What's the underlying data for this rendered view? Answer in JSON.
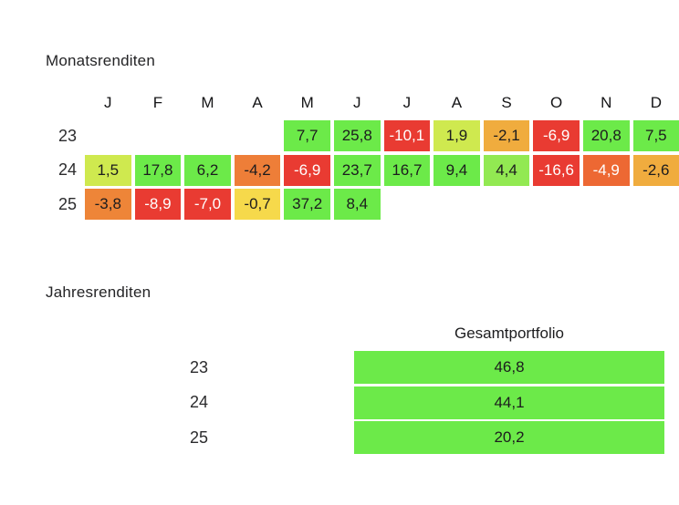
{
  "colors": {
    "page_background": "#ffffff",
    "text_dark": "#1c1c1e",
    "text_light": "#ffffff",
    "green_strong": "#6cea49",
    "green_mid": "#92e952",
    "yellow_green": "#cfe94f",
    "yellow": "#f6d94b",
    "amber": "#f0ac3e",
    "orange": "#ee8038",
    "orange_red": "#ed6833",
    "red": "#e93b32",
    "annual_bar": "#6cea49"
  },
  "monthly": {
    "title": "Monatsrenditen",
    "columns": [
      "J",
      "F",
      "M",
      "A",
      "M",
      "J",
      "J",
      "A",
      "S",
      "O",
      "N",
      "D"
    ],
    "rows": [
      {
        "year": "23",
        "cells": [
          null,
          null,
          null,
          null,
          {
            "v": "7,7",
            "bg": "#6cea49"
          },
          {
            "v": "25,8",
            "bg": "#6cea49"
          },
          {
            "v": "-10,1",
            "bg": "#e93b32",
            "light": true
          },
          {
            "v": "1,9",
            "bg": "#cfe94f"
          },
          {
            "v": "-2,1",
            "bg": "#f0ac3e"
          },
          {
            "v": "-6,9",
            "bg": "#e93b32",
            "light": true
          },
          {
            "v": "20,8",
            "bg": "#6cea49"
          },
          {
            "v": "7,5",
            "bg": "#6cea49"
          }
        ]
      },
      {
        "year": "24",
        "cells": [
          {
            "v": "1,5",
            "bg": "#cfe94f"
          },
          {
            "v": "17,8",
            "bg": "#6cea49"
          },
          {
            "v": "6,2",
            "bg": "#6cea49"
          },
          {
            "v": "-4,2",
            "bg": "#ee7e38"
          },
          {
            "v": "-6,9",
            "bg": "#e93b32",
            "light": true
          },
          {
            "v": "23,7",
            "bg": "#6cea49"
          },
          {
            "v": "16,7",
            "bg": "#6cea49"
          },
          {
            "v": "9,4",
            "bg": "#6cea49"
          },
          {
            "v": "4,4",
            "bg": "#92e952"
          },
          {
            "v": "-16,6",
            "bg": "#e93b32",
            "light": true
          },
          {
            "v": "-4,9",
            "bg": "#ed6833",
            "light": true
          },
          {
            "v": "-2,6",
            "bg": "#f0ac3e"
          }
        ]
      },
      {
        "year": "25",
        "cells": [
          {
            "v": "-3,8",
            "bg": "#ee8538"
          },
          {
            "v": "-8,9",
            "bg": "#e93b32",
            "light": true
          },
          {
            "v": "-7,0",
            "bg": "#e93b32",
            "light": true
          },
          {
            "v": "-0,7",
            "bg": "#f6d94b"
          },
          {
            "v": "37,2",
            "bg": "#6cea49"
          },
          {
            "v": "8,4",
            "bg": "#6cea49"
          },
          null,
          null,
          null,
          null,
          null,
          null
        ]
      }
    ]
  },
  "annual": {
    "title": "Jahresrenditen",
    "column_header": "Gesamtportfolio",
    "rows": [
      {
        "year": "23",
        "value": "46,8"
      },
      {
        "year": "24",
        "value": "44,1"
      },
      {
        "year": "25",
        "value": "20,2"
      }
    ]
  },
  "chart_data": [
    {
      "type": "heatmap",
      "title": "Monatsrenditen",
      "x_labels": [
        "J",
        "F",
        "M",
        "A",
        "M",
        "J",
        "J",
        "A",
        "S",
        "O",
        "N",
        "D"
      ],
      "y_labels": [
        "23",
        "24",
        "25"
      ],
      "values": [
        [
          null,
          null,
          null,
          null,
          7.7,
          25.8,
          -10.1,
          1.9,
          -2.1,
          -6.9,
          20.8,
          7.5
        ],
        [
          1.5,
          17.8,
          6.2,
          -4.2,
          -6.9,
          23.7,
          16.7,
          9.4,
          4.4,
          -16.6,
          -4.9,
          -2.6
        ],
        [
          -3.8,
          -8.9,
          -7.0,
          -0.7,
          37.2,
          8.4,
          null,
          null,
          null,
          null,
          null,
          null
        ]
      ],
      "colorscale": "red-yellow-green",
      "number_format": "decimal-comma"
    },
    {
      "type": "table",
      "title": "Jahresrenditen",
      "columns": [
        "Gesamtportfolio"
      ],
      "rows": [
        [
          "23",
          46.8
        ],
        [
          "24",
          44.1
        ],
        [
          "25",
          20.2
        ]
      ],
      "cell_fill": "green"
    }
  ]
}
